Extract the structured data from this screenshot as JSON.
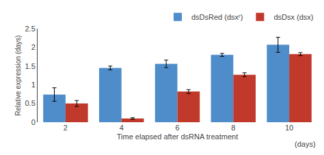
{
  "chart_data": {
    "type": "bar",
    "xlabel": "Time elapsed after dsRNA treatment",
    "ylabel": "Relative expression (days)",
    "annotations": [
      "(days)"
    ],
    "categories": [
      "2",
      "4",
      "6",
      "8",
      "10"
    ],
    "series": [
      {
        "name": "dsDsRed (dsxʳ)",
        "color": "#4e8dc9",
        "values": [
          0.74,
          1.45,
          1.56,
          1.8,
          2.07
        ],
        "errors": [
          0.18,
          0.05,
          0.1,
          0.04,
          0.2
        ]
      },
      {
        "name": "dsDsx (dsx)",
        "color": "#c0392b",
        "values": [
          0.5,
          0.1,
          0.82,
          1.27,
          1.82
        ],
        "errors": [
          0.08,
          0.02,
          0.05,
          0.05,
          0.04
        ]
      }
    ],
    "ylim": [
      0,
      2.5
    ],
    "yticks": [
      0,
      0.5,
      1,
      1.5,
      2,
      2.5
    ],
    "grid": false,
    "legend": "upper right"
  }
}
